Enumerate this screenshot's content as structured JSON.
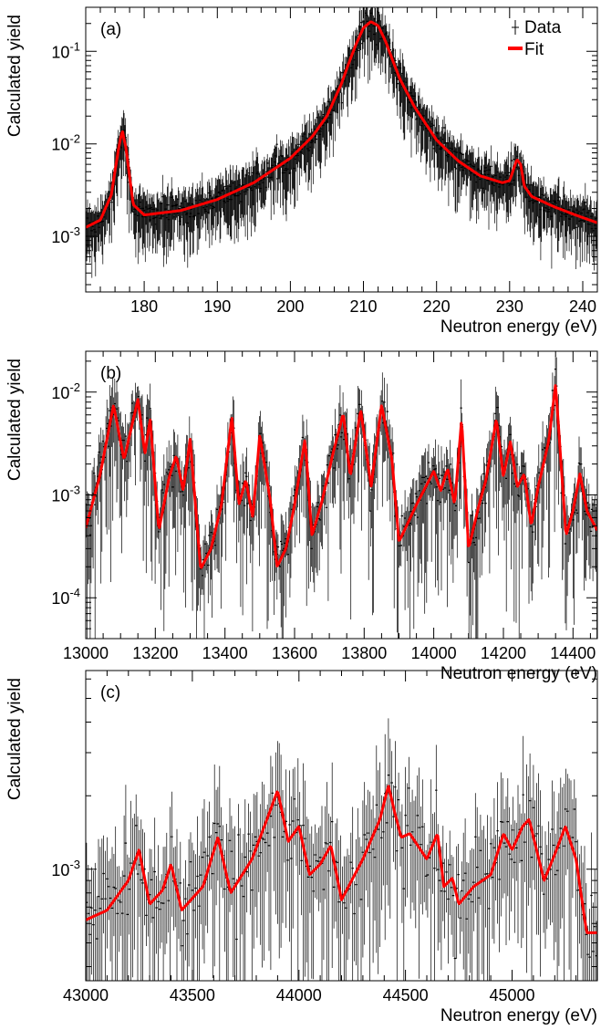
{
  "chart_data": [
    {
      "type": "line",
      "panel_tag": "(a)",
      "xlabel": "Neutron energy (eV)",
      "ylabel": "Calculated yield",
      "xlim": [
        172,
        242
      ],
      "ylim": [
        0.00025,
        0.3
      ],
      "y_scale": "log",
      "x_ticks": [
        180,
        190,
        200,
        210,
        220,
        230,
        240
      ],
      "y_ticks": [
        {
          "value": 0.001,
          "label": "10^-3"
        },
        {
          "value": 0.01,
          "label": "10^-2"
        },
        {
          "value": 0.1,
          "label": "10^-1"
        }
      ],
      "legend": {
        "position": "top-right",
        "entries": [
          {
            "label": "Data",
            "color": "#000000"
          },
          {
            "label": "Fit",
            "color": "#ff0000"
          }
        ]
      },
      "series": [
        {
          "name": "Fit",
          "color": "#ff0000",
          "x": [
            172,
            174,
            175.5,
            176.5,
            177.0,
            177.5,
            178.5,
            180,
            185,
            190,
            195,
            200,
            203,
            205,
            207,
            208,
            209,
            210,
            211,
            212,
            213,
            214,
            215,
            217,
            220,
            223,
            226,
            229,
            230,
            231,
            231.5,
            232,
            233,
            236,
            239,
            242
          ],
          "y": [
            0.00125,
            0.0015,
            0.0028,
            0.009,
            0.014,
            0.009,
            0.0022,
            0.0017,
            0.0019,
            0.0025,
            0.0038,
            0.007,
            0.012,
            0.02,
            0.045,
            0.075,
            0.12,
            0.18,
            0.21,
            0.19,
            0.13,
            0.08,
            0.05,
            0.025,
            0.011,
            0.0065,
            0.0045,
            0.0038,
            0.004,
            0.0068,
            0.006,
            0.0035,
            0.0027,
            0.0021,
            0.0017,
            0.0014
          ]
        },
        {
          "name": "Data",
          "color": "#000000",
          "noise": 0.3
        }
      ]
    },
    {
      "type": "line",
      "panel_tag": "(b)",
      "xlabel": "Neutron energy (eV)",
      "ylabel": "Calculated yield",
      "xlim": [
        13000,
        14470
      ],
      "ylim": [
        4e-05,
        0.025
      ],
      "y_scale": "log",
      "x_ticks": [
        13000,
        13200,
        13400,
        13600,
        13800,
        14000,
        14200,
        14400
      ],
      "y_ticks": [
        {
          "value": 0.0001,
          "label": "10^-4"
        },
        {
          "value": 0.001,
          "label": "10^-3"
        },
        {
          "value": 0.01,
          "label": "10^-2"
        }
      ],
      "series": [
        {
          "name": "Fit",
          "color": "#ff0000",
          "x": [
            13000,
            13040,
            13080,
            13110,
            13150,
            13170,
            13185,
            13210,
            13240,
            13260,
            13280,
            13300,
            13330,
            13360,
            13390,
            13420,
            13440,
            13460,
            13480,
            13500,
            13530,
            13550,
            13575,
            13600,
            13630,
            13650,
            13680,
            13710,
            13740,
            13760,
            13790,
            13820,
            13850,
            13880,
            13900,
            13950,
            14000,
            14020,
            14040,
            14060,
            14080,
            14100,
            14130,
            14150,
            14180,
            14200,
            14220,
            14240,
            14260,
            14280,
            14300,
            14330,
            14350,
            14380,
            14400,
            14420,
            14440,
            14470
          ],
          "y": [
            0.00048,
            0.0015,
            0.0075,
            0.0022,
            0.0085,
            0.0025,
            0.0055,
            0.00045,
            0.0015,
            0.0024,
            0.0011,
            0.0035,
            0.00019,
            0.0003,
            0.0008,
            0.0058,
            0.0008,
            0.0014,
            0.0006,
            0.0038,
            0.0009,
            0.0002,
            0.0003,
            0.0008,
            0.0035,
            0.0004,
            0.0009,
            0.0025,
            0.0062,
            0.0015,
            0.0068,
            0.0012,
            0.0075,
            0.0022,
            0.00035,
            0.0008,
            0.0017,
            0.0011,
            0.0018,
            0.0008,
            0.0055,
            0.0003,
            0.0008,
            0.0014,
            0.0055,
            0.0015,
            0.0033,
            0.0012,
            0.0016,
            0.0005,
            0.0012,
            0.0033,
            0.012,
            0.0004,
            0.0007,
            0.0016,
            0.0007,
            0.00045
          ]
        },
        {
          "name": "Data",
          "color": "#000000",
          "noise": 0.45
        }
      ]
    },
    {
      "type": "line",
      "panel_tag": "(c)",
      "xlabel": "Neutron energy (eV)",
      "ylabel": "Calculated yield",
      "xlim": [
        43000,
        45400
      ],
      "ylim": [
        0.00035,
        0.0065
      ],
      "y_scale": "log",
      "x_ticks": [
        43000,
        43500,
        44000,
        44500,
        45000
      ],
      "y_ticks": [
        {
          "value": 0.001,
          "label": "10^-3"
        }
      ],
      "series": [
        {
          "name": "Fit",
          "color": "#ff0000",
          "x": [
            43000,
            43100,
            43200,
            43250,
            43300,
            43360,
            43400,
            43450,
            43550,
            43620,
            43680,
            43780,
            43850,
            43900,
            43950,
            44000,
            44050,
            44100,
            44150,
            44200,
            44300,
            44380,
            44420,
            44450,
            44480,
            44520,
            44600,
            44650,
            44680,
            44720,
            44750,
            44820,
            44900,
            44960,
            45000,
            45050,
            45080,
            45150,
            45200,
            45250,
            45300,
            45350,
            45400
          ],
          "y": [
            0.00062,
            0.00068,
            0.0009,
            0.0012,
            0.00072,
            0.00082,
            0.00105,
            0.00068,
            0.00085,
            0.00135,
            0.0008,
            0.0011,
            0.0016,
            0.0021,
            0.0013,
            0.0015,
            0.00095,
            0.00105,
            0.00125,
            0.00075,
            0.0011,
            0.0016,
            0.0022,
            0.0017,
            0.00135,
            0.0014,
            0.0011,
            0.0014,
            0.00085,
            0.00092,
            0.00072,
            0.00085,
            0.00095,
            0.0014,
            0.0012,
            0.0015,
            0.0016,
            0.0009,
            0.00115,
            0.0015,
            0.0011,
            0.00055,
            0.00055
          ]
        },
        {
          "name": "Data",
          "color": "#000000",
          "noise": 0.35
        }
      ]
    }
  ]
}
